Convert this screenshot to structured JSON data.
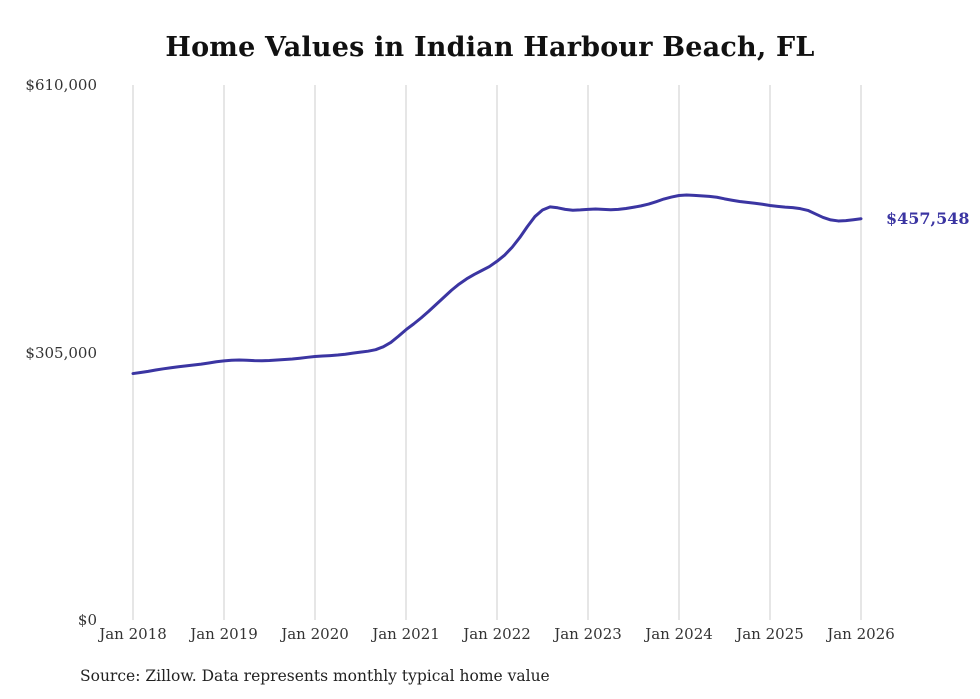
{
  "chart_data": {
    "type": "line",
    "title": "Home Values in Indian Harbour Beach, FL",
    "xlabel": "",
    "ylabel": "",
    "ylim": [
      0,
      610000
    ],
    "grid": "vertical-only",
    "legend": "none",
    "x_tick_labels": [
      "Jan 2018",
      "Jan 2019",
      "Jan 2020",
      "Jan 2021",
      "Jan 2022",
      "Jan 2023",
      "Jan 2024",
      "Jan 2025",
      "Jan 2026"
    ],
    "y_tick_labels": [
      "$610,000",
      "$305,000",
      "$0"
    ],
    "end_label": "$457,548",
    "latest_value": 457548,
    "series": [
      {
        "name": "Typical home value",
        "frequency": "monthly",
        "x_start": "Jan 2018",
        "x_end": "Jan 2026",
        "values": [
          281000,
          282200,
          283500,
          285000,
          286400,
          287600,
          288700,
          289700,
          290700,
          291700,
          293000,
          294500,
          295500,
          296200,
          296500,
          296200,
          295800,
          295600,
          295900,
          296400,
          297000,
          297600,
          298500,
          299500,
          300400,
          301000,
          301500,
          302100,
          303000,
          304300,
          305400,
          306500,
          308200,
          311500,
          316500,
          323500,
          331000,
          337500,
          344500,
          352000,
          360000,
          368000,
          376000,
          383000,
          389000,
          394000,
          398500,
          403000,
          409000,
          416000,
          425000,
          436000,
          448500,
          460000,
          467500,
          471000,
          470000,
          468200,
          467200,
          467600,
          468200,
          468600,
          468200,
          467800,
          468200,
          469200,
          470600,
          472200,
          474200,
          477000,
          480000,
          482200,
          484000,
          484600,
          484200,
          483600,
          483000,
          482000,
          480200,
          478600,
          477200,
          476200,
          475200,
          474000,
          472600,
          471600,
          470800,
          470200,
          469000,
          467000,
          463000,
          459000,
          456200,
          455000,
          455400,
          456400,
          457548
        ]
      }
    ]
  },
  "footer": {
    "source": "Source: Zillow. Data represents monthly typical home value"
  },
  "colors": {
    "line": "#3b35a2",
    "end_label": "#3b35a2",
    "gridline": "#cccccc",
    "title": "#111111",
    "tick": "#333333",
    "background": "#ffffff"
  }
}
